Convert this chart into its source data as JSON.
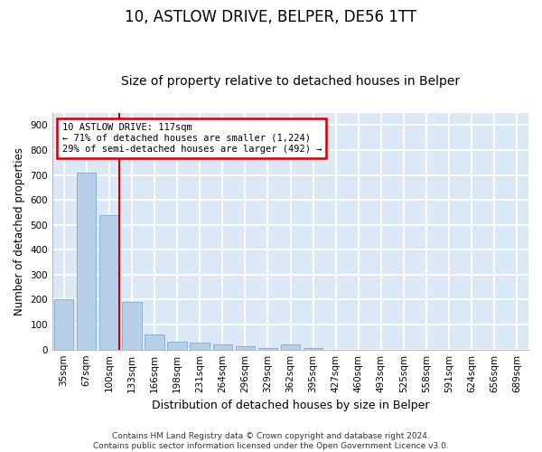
{
  "title": "10, ASTLOW DRIVE, BELPER, DE56 1TT",
  "subtitle": "Size of property relative to detached houses in Belper",
  "xlabel": "Distribution of detached houses by size in Belper",
  "ylabel": "Number of detached properties",
  "categories": [
    "35sqm",
    "67sqm",
    "100sqm",
    "133sqm",
    "166sqm",
    "198sqm",
    "231sqm",
    "264sqm",
    "296sqm",
    "329sqm",
    "362sqm",
    "395sqm",
    "427sqm",
    "460sqm",
    "493sqm",
    "525sqm",
    "558sqm",
    "591sqm",
    "624sqm",
    "656sqm",
    "689sqm"
  ],
  "values": [
    200,
    710,
    540,
    190,
    60,
    30,
    28,
    20,
    15,
    5,
    20,
    5,
    0,
    0,
    0,
    0,
    0,
    0,
    0,
    0,
    0
  ],
  "bar_color": "#b8cfe8",
  "bar_edge_color": "#7aaad0",
  "background_color": "#dce8f5",
  "grid_color": "#ffffff",
  "annotation_box_text": "10 ASTLOW DRIVE: 117sqm\n← 71% of detached houses are smaller (1,224)\n29% of semi-detached houses are larger (492) →",
  "annotation_box_color": "#ffffff",
  "annotation_box_edge": "#cc0000",
  "vline_x": 2.45,
  "vline_color": "#cc0000",
  "ylim": [
    0,
    950
  ],
  "yticks": [
    0,
    100,
    200,
    300,
    400,
    500,
    600,
    700,
    800,
    900
  ],
  "footer": "Contains HM Land Registry data © Crown copyright and database right 2024.\nContains public sector information licensed under the Open Government Licence v3.0.",
  "title_fontsize": 12,
  "subtitle_fontsize": 10,
  "xlabel_fontsize": 9,
  "ylabel_fontsize": 8.5,
  "tick_fontsize": 7.5,
  "footer_fontsize": 6.5
}
